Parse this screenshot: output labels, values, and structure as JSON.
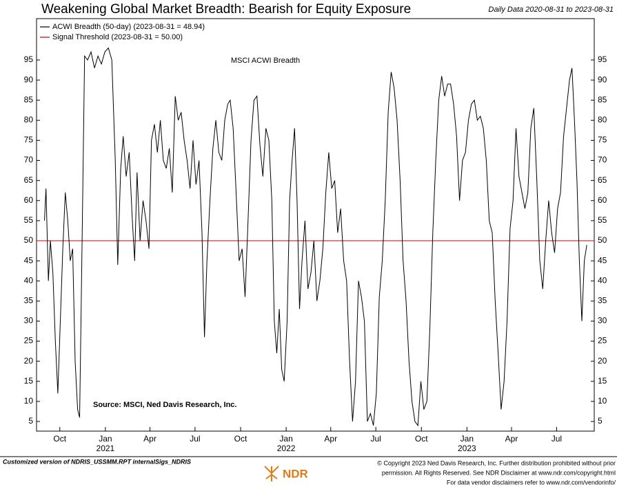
{
  "chart_data": {
    "type": "line",
    "title": "Weakening Global Market Breadth: Bearish for Equity Exposure",
    "subtitle": "Daily Data 2020-08-31 to 2023-08-31",
    "annotation": "MSCI ACWI Breadth",
    "source": "Source: MSCI, Ned Davis Research, Inc.",
    "footer_left": "Customized version of NDRIS_USSMM.RPT internalSigs_NDRIS",
    "footer_right": [
      "© Copyright 2023 Ned Davis Research, Inc. Further distribution prohibited without prior",
      "permission. All Rights Reserved. See NDR Disclaimer at www.ndr.com/copyright.html",
      "For data vendor disclaimers refer to www.ndr.com/vendorinfo/"
    ],
    "logo": "NDR",
    "x": [
      "2020-08-31",
      "2020-09-03",
      "2020-09-08",
      "2020-09-12",
      "2020-09-17",
      "2020-09-22",
      "2020-09-27",
      "2020-10-02",
      "2020-10-07",
      "2020-10-12",
      "2020-10-17",
      "2020-10-22",
      "2020-10-27",
      "2020-11-01",
      "2020-11-06",
      "2020-11-10",
      "2020-11-15",
      "2020-11-20",
      "2020-11-26",
      "2020-12-03",
      "2020-12-10",
      "2020-12-17",
      "2020-12-24",
      "2020-12-31",
      "2021-01-07",
      "2021-01-14",
      "2021-01-21",
      "2021-01-26",
      "2021-02-01",
      "2021-02-06",
      "2021-02-12",
      "2021-02-18",
      "2021-02-24",
      "2021-03-01",
      "2021-03-06",
      "2021-03-12",
      "2021-03-18",
      "2021-03-24",
      "2021-03-30",
      "2021-04-04",
      "2021-04-10",
      "2021-04-16",
      "2021-04-22",
      "2021-04-28",
      "2021-05-04",
      "2021-05-10",
      "2021-05-16",
      "2021-05-22",
      "2021-05-28",
      "2021-06-03",
      "2021-06-09",
      "2021-06-15",
      "2021-06-21",
      "2021-06-27",
      "2021-07-03",
      "2021-07-09",
      "2021-07-15",
      "2021-07-20",
      "2021-07-25",
      "2021-07-31",
      "2021-08-06",
      "2021-08-12",
      "2021-08-18",
      "2021-08-24",
      "2021-08-30",
      "2021-09-05",
      "2021-09-10",
      "2021-09-16",
      "2021-09-22",
      "2021-09-28",
      "2021-10-04",
      "2021-10-10",
      "2021-10-16",
      "2021-10-22",
      "2021-10-28",
      "2021-11-03",
      "2021-11-09",
      "2021-11-15",
      "2021-11-21",
      "2021-11-27",
      "2021-12-03",
      "2021-12-08",
      "2021-12-13",
      "2021-12-18",
      "2021-12-23",
      "2021-12-28",
      "2022-01-03",
      "2022-01-08",
      "2022-01-13",
      "2022-01-18",
      "2022-01-23",
      "2022-01-28",
      "2022-02-02",
      "2022-02-08",
      "2022-02-14",
      "2022-02-20",
      "2022-02-26",
      "2022-03-04",
      "2022-03-10",
      "2022-03-16",
      "2022-03-22",
      "2022-03-28",
      "2022-04-03",
      "2022-04-09",
      "2022-04-15",
      "2022-04-21",
      "2022-04-27",
      "2022-05-03",
      "2022-05-09",
      "2022-05-15",
      "2022-05-21",
      "2022-05-27",
      "2022-06-02",
      "2022-06-08",
      "2022-06-14",
      "2022-06-20",
      "2022-06-26",
      "2022-07-02",
      "2022-07-08",
      "2022-07-14",
      "2022-07-20",
      "2022-07-26",
      "2022-08-01",
      "2022-08-07",
      "2022-08-13",
      "2022-08-19",
      "2022-08-25",
      "2022-08-31",
      "2022-09-06",
      "2022-09-12",
      "2022-09-18",
      "2022-09-24",
      "2022-09-30",
      "2022-10-06",
      "2022-10-12",
      "2022-10-18",
      "2022-10-24",
      "2022-10-30",
      "2022-11-05",
      "2022-11-11",
      "2022-11-17",
      "2022-11-23",
      "2022-11-29",
      "2022-12-05",
      "2022-12-11",
      "2022-12-17",
      "2022-12-23",
      "2022-12-29",
      "2023-01-04",
      "2023-01-10",
      "2023-01-16",
      "2023-01-22",
      "2023-01-28",
      "2023-02-03",
      "2023-02-09",
      "2023-02-15",
      "2023-02-21",
      "2023-02-27",
      "2023-03-05",
      "2023-03-11",
      "2023-03-17",
      "2023-03-23",
      "2023-03-29",
      "2023-04-04",
      "2023-04-10",
      "2023-04-16",
      "2023-04-22",
      "2023-04-28",
      "2023-05-04",
      "2023-05-10",
      "2023-05-16",
      "2023-05-22",
      "2023-05-28",
      "2023-06-03",
      "2023-06-09",
      "2023-06-15",
      "2023-06-21",
      "2023-06-27",
      "2023-07-03",
      "2023-07-09",
      "2023-07-15",
      "2023-07-21",
      "2023-07-27",
      "2023-08-01",
      "2023-08-06",
      "2023-08-11",
      "2023-08-16",
      "2023-08-21",
      "2023-08-26",
      "2023-08-31"
    ],
    "series": [
      {
        "name": "ACWI Breadth (50-day) (2023-08-31 = 48.94)",
        "color": "#000000",
        "values": [
          55,
          63,
          40,
          50,
          42,
          25,
          12,
          30,
          48,
          62,
          55,
          45,
          48,
          20,
          8,
          6,
          50,
          96,
          95,
          97,
          93,
          96,
          94,
          97,
          98,
          95,
          70,
          44,
          68,
          76,
          66,
          72,
          56,
          45,
          67,
          50,
          60,
          55,
          48,
          75,
          79,
          72,
          80,
          70,
          68,
          73,
          62,
          86,
          80,
          82,
          75,
          70,
          63,
          75,
          64,
          70,
          52,
          26,
          45,
          60,
          73,
          80,
          72,
          70,
          80,
          84,
          85,
          78,
          62,
          45,
          48,
          36,
          55,
          75,
          85,
          86,
          74,
          66,
          78,
          75,
          60,
          30,
          22,
          33,
          18,
          15,
          30,
          60,
          70,
          78,
          60,
          33,
          45,
          55,
          38,
          42,
          50,
          35,
          40,
          48,
          62,
          72,
          63,
          65,
          52,
          58,
          45,
          40,
          20,
          5,
          15,
          40,
          36,
          30,
          5,
          7,
          4,
          12,
          36,
          45,
          60,
          82,
          92,
          88,
          80,
          65,
          45,
          35,
          20,
          10,
          5,
          4,
          15,
          8,
          10,
          28,
          52,
          70,
          85,
          91,
          86,
          89,
          89,
          84,
          76,
          60,
          70,
          72,
          80,
          84,
          85,
          80,
          81,
          78,
          70,
          55,
          52,
          35,
          22,
          8,
          15,
          30,
          53,
          60,
          78,
          66,
          62,
          58,
          62,
          78,
          83,
          65,
          45,
          38,
          50,
          60,
          52,
          47,
          58,
          62,
          76,
          83,
          90,
          93,
          80,
          65,
          45,
          30,
          45,
          48.94
        ]
      }
    ],
    "hlines": [
      {
        "name": "Signal Threshold (2023-08-31 = 50.00)",
        "value": 50,
        "color": "#c00000"
      }
    ],
    "xlim": [
      "2020-08-15",
      "2023-09-15"
    ],
    "xticks": [
      {
        "value": "2020-10-01",
        "label": "Oct"
      },
      {
        "value": "2021-01-01",
        "label": "Jan"
      },
      {
        "value": "2021-04-01",
        "label": "Apr"
      },
      {
        "value": "2021-07-01",
        "label": "Jul"
      },
      {
        "value": "2021-10-01",
        "label": "Oct"
      },
      {
        "value": "2022-01-01",
        "label": "Jan"
      },
      {
        "value": "2022-04-01",
        "label": "Apr"
      },
      {
        "value": "2022-07-01",
        "label": "Jul"
      },
      {
        "value": "2022-10-01",
        "label": "Oct"
      },
      {
        "value": "2023-01-01",
        "label": "Jan"
      },
      {
        "value": "2023-04-01",
        "label": "Apr"
      },
      {
        "value": "2023-07-01",
        "label": "Jul"
      }
    ],
    "year_labels": [
      {
        "value": "2021-01-01",
        "label": "2021"
      },
      {
        "value": "2022-01-01",
        "label": "2022"
      },
      {
        "value": "2023-01-01",
        "label": "2023"
      }
    ],
    "ylim": [
      2.6,
      105.3
    ],
    "yticks": [
      5,
      10,
      15,
      20,
      25,
      30,
      35,
      40,
      45,
      50,
      55,
      60,
      65,
      70,
      75,
      80,
      85,
      90,
      95
    ]
  }
}
